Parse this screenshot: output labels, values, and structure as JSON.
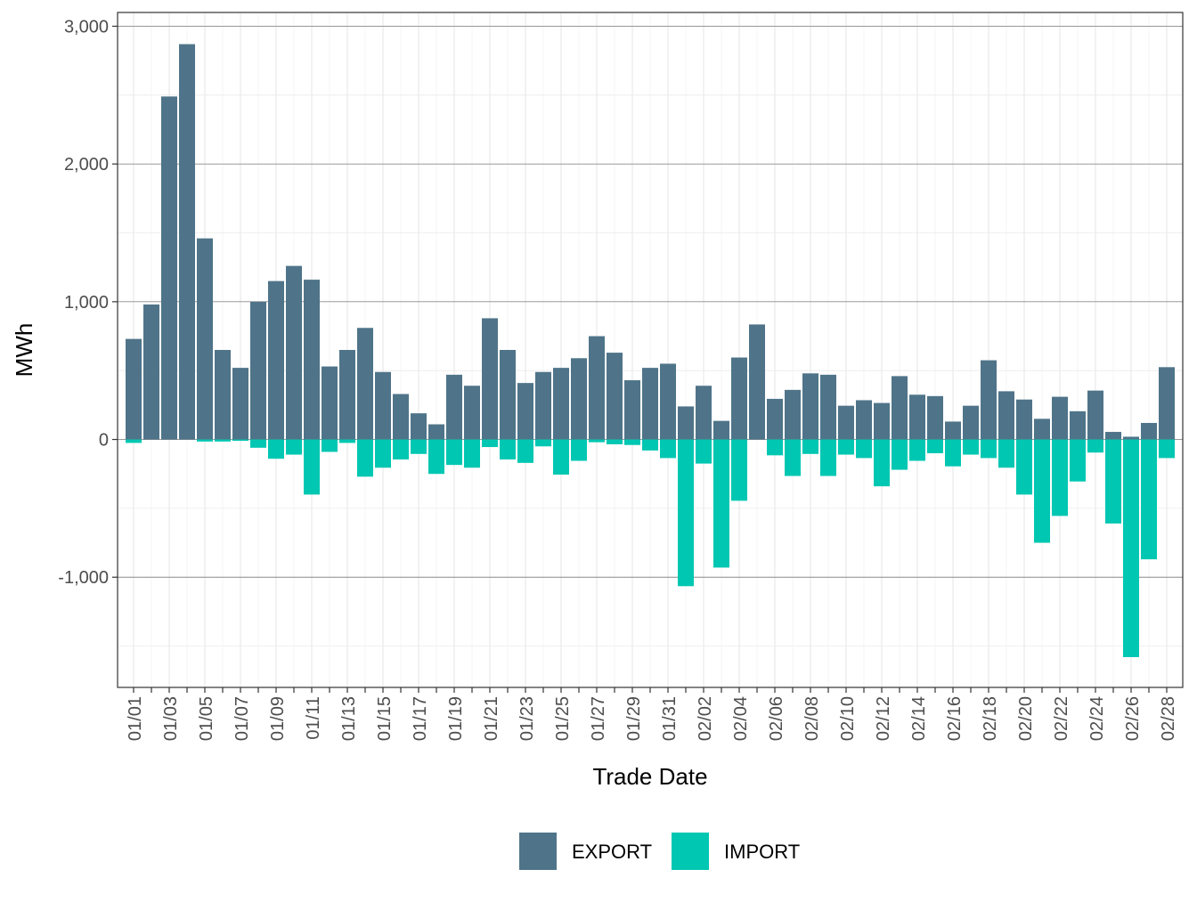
{
  "chart_data": {
    "type": "bar",
    "stacked": "diverging",
    "title": "",
    "xlabel": "Trade Date",
    "ylabel": "MWh",
    "ylim": [
      -1800,
      3100
    ],
    "yticks": [
      3000,
      2000,
      1000,
      0,
      -1000
    ],
    "ytick_labels": [
      "3,000",
      "2,000",
      "1,000",
      "0",
      "-1,000"
    ],
    "grid": true,
    "legend_position": "bottom",
    "categories": [
      "01/01",
      "01/02",
      "01/03",
      "01/04",
      "01/05",
      "01/06",
      "01/07",
      "01/08",
      "01/09",
      "01/10",
      "01/11",
      "01/12",
      "01/13",
      "01/14",
      "01/15",
      "01/16",
      "01/17",
      "01/18",
      "01/19",
      "01/20",
      "01/21",
      "01/22",
      "01/23",
      "01/24",
      "01/25",
      "01/26",
      "01/27",
      "01/28",
      "01/29",
      "01/30",
      "01/31",
      "02/01",
      "02/02",
      "02/03",
      "02/04",
      "02/05",
      "02/06",
      "02/07",
      "02/08",
      "02/09",
      "02/10",
      "02/11",
      "02/12",
      "02/13",
      "02/14",
      "02/15",
      "02/16",
      "02/17",
      "02/18",
      "02/19",
      "02/20",
      "02/21",
      "02/22",
      "02/23",
      "02/24",
      "02/25",
      "02/26",
      "02/27",
      "02/28"
    ],
    "xtick_labels": [
      "01/01",
      "01/03",
      "01/05",
      "01/07",
      "01/09",
      "01/11",
      "01/13",
      "01/15",
      "01/17",
      "01/19",
      "01/21",
      "01/23",
      "01/25",
      "01/27",
      "01/29",
      "01/31",
      "02/02",
      "02/04",
      "02/06",
      "02/08",
      "02/10",
      "02/12",
      "02/14",
      "02/16",
      "02/18",
      "02/20",
      "02/22",
      "02/24",
      "02/26",
      "02/28"
    ],
    "series": [
      {
        "name": "EXPORT",
        "color": "#4f7489",
        "values": [
          730,
          980,
          2490,
          2870,
          1460,
          650,
          520,
          1000,
          1150,
          1260,
          1160,
          530,
          650,
          810,
          490,
          330,
          190,
          110,
          470,
          390,
          880,
          650,
          410,
          490,
          520,
          590,
          750,
          630,
          430,
          520,
          550,
          240,
          390,
          135,
          595,
          835,
          295,
          360,
          480,
          470,
          245,
          285,
          265,
          460,
          325,
          315,
          130,
          245,
          575,
          350,
          290,
          150,
          310,
          205,
          355,
          55,
          20,
          120,
          525
        ]
      },
      {
        "name": "IMPORT",
        "color": "#00c7b2",
        "values": [
          -25,
          0,
          0,
          0,
          -15,
          -15,
          -10,
          -60,
          -140,
          -110,
          -400,
          -90,
          -25,
          -270,
          -205,
          -145,
          -105,
          -250,
          -185,
          -205,
          -55,
          -145,
          -170,
          -50,
          -255,
          -155,
          -20,
          -35,
          -40,
          -80,
          -135,
          -1065,
          -175,
          -930,
          -445,
          0,
          -115,
          -265,
          -105,
          -265,
          -110,
          -135,
          -340,
          -220,
          -155,
          -100,
          -195,
          -110,
          -135,
          -205,
          -400,
          -750,
          -555,
          -305,
          -95,
          -610,
          -1580,
          -870,
          -135
        ]
      }
    ]
  }
}
